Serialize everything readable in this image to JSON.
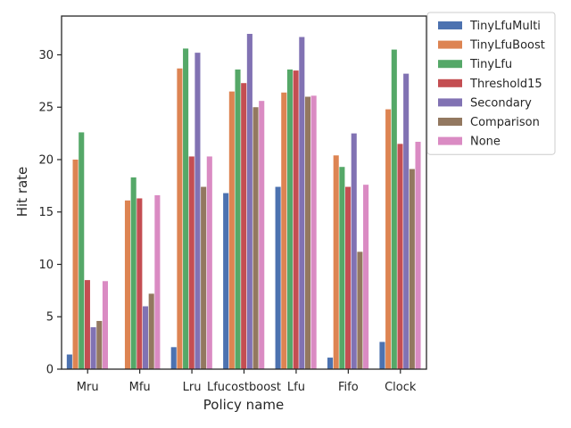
{
  "chart_data": {
    "type": "bar",
    "title": "",
    "xlabel": "Policy name",
    "ylabel": "Hit rate",
    "ylim": [
      0,
      33.7
    ],
    "yticks": [
      0,
      5,
      10,
      15,
      20,
      25,
      30
    ],
    "grid": false,
    "legend_position": "outside-top-right",
    "categories": [
      "Mru",
      "Mfu",
      "Lru",
      "Lfucostboost",
      "Lfu",
      "Fifo",
      "Clock"
    ],
    "series": [
      {
        "name": "TinyLfuMulti",
        "color": "#4c72b0",
        "values": [
          1.4,
          0,
          2.1,
          16.8,
          17.4,
          1.1,
          2.6
        ]
      },
      {
        "name": "TinyLfuBoost",
        "color": "#dd8452",
        "values": [
          20.0,
          16.1,
          28.7,
          26.5,
          26.4,
          20.4,
          24.8
        ]
      },
      {
        "name": "TinyLfu",
        "color": "#55a868",
        "values": [
          22.6,
          18.3,
          30.6,
          28.6,
          28.6,
          19.3,
          30.5
        ]
      },
      {
        "name": "Threshold15",
        "color": "#c44e52",
        "values": [
          8.5,
          16.3,
          20.3,
          27.3,
          28.5,
          17.4,
          21.5
        ]
      },
      {
        "name": "Secondary",
        "color": "#8172b3",
        "values": [
          4.0,
          6.0,
          30.2,
          32.0,
          31.7,
          22.5,
          28.2
        ]
      },
      {
        "name": "Comparison",
        "color": "#937860",
        "values": [
          4.6,
          7.2,
          17.4,
          25.0,
          26.0,
          11.2,
          19.1
        ]
      },
      {
        "name": "None",
        "color": "#da8bc3",
        "values": [
          8.4,
          16.6,
          20.3,
          25.6,
          26.1,
          17.6,
          21.7
        ]
      }
    ]
  }
}
